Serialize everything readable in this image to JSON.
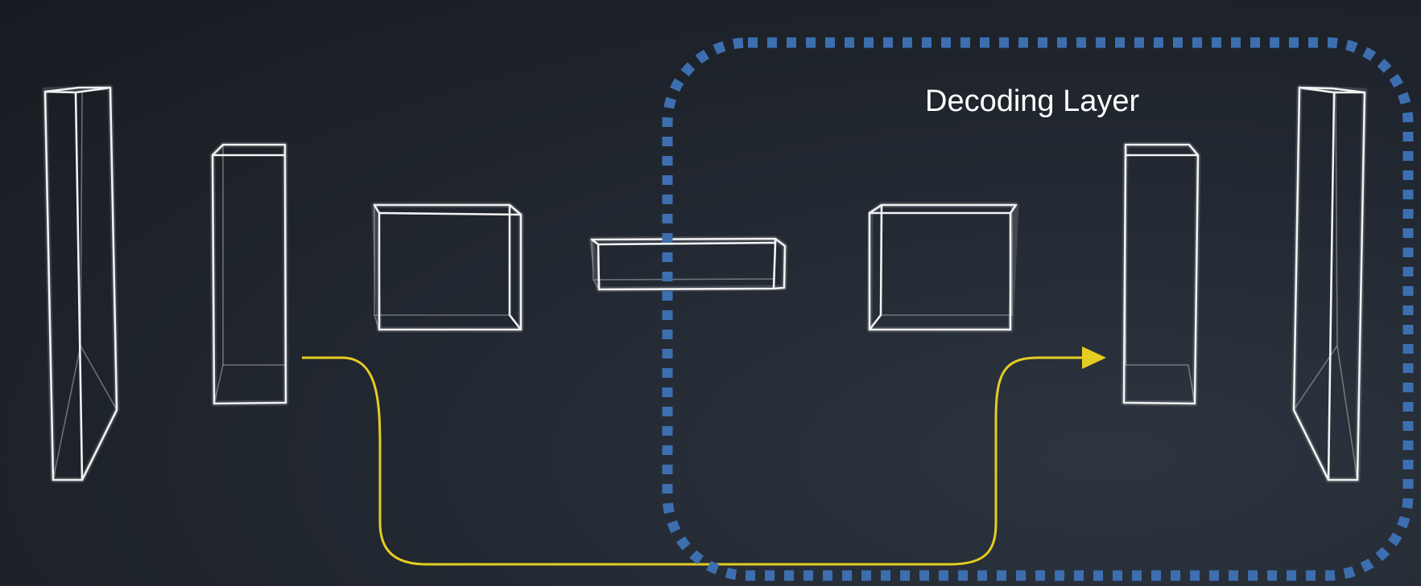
{
  "diagram": {
    "title": "Decoding Layer",
    "colors": {
      "region_border": "#3d6fb0",
      "skip_connection": "#e6cd21",
      "layer_outline": "#f2f2f2"
    },
    "layers": [
      {
        "name": "input-layer",
        "region": "encoder"
      },
      {
        "name": "encoder-layer-1",
        "region": "encoder"
      },
      {
        "name": "encoder-layer-2",
        "region": "encoder"
      },
      {
        "name": "bottleneck-layer",
        "region": "both"
      },
      {
        "name": "decoder-layer-1",
        "region": "decoder"
      },
      {
        "name": "decoder-layer-2",
        "region": "decoder"
      },
      {
        "name": "output-layer",
        "region": "decoder"
      }
    ],
    "connections": [
      {
        "from": "encoder-layer-1",
        "to": "decoder-layer-2",
        "type": "skip-connection"
      }
    ]
  }
}
